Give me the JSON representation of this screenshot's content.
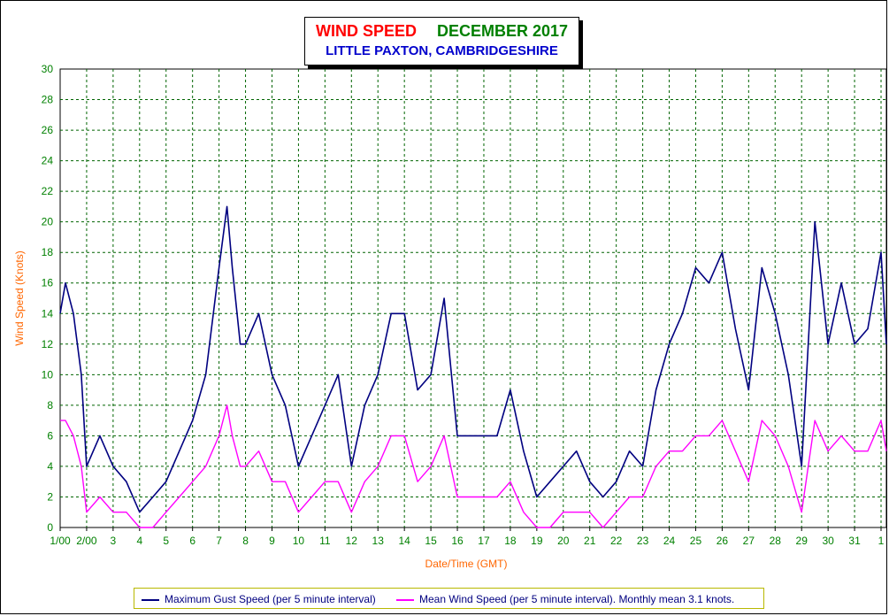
{
  "chart_data": {
    "type": "line",
    "title": "WIND SPEED",
    "title_month": "DECEMBER 2017",
    "subtitle": "LITTLE PAXTON, CAMBRIDGESHIRE",
    "xlabel": "Date/Time (GMT)",
    "ylabel": "Wind Speed (Knots)",
    "ylim": [
      0,
      30
    ],
    "yticks": [
      0,
      2,
      4,
      6,
      8,
      10,
      12,
      14,
      16,
      18,
      20,
      22,
      24,
      26,
      28,
      30
    ],
    "xlim": [
      1,
      32.2
    ],
    "x_tick_labels": [
      "1/00",
      "2/00",
      "3",
      "4",
      "5",
      "6",
      "7",
      "8",
      "9",
      "10",
      "11",
      "12",
      "13",
      "14",
      "15",
      "16",
      "17",
      "18",
      "19",
      "20",
      "21",
      "22",
      "23",
      "24",
      "25",
      "26",
      "27",
      "28",
      "29",
      "30",
      "31",
      "1"
    ],
    "grid": true,
    "legend_position": "bottom",
    "series": [
      {
        "name": "Maximum Gust Speed (per 5 minute interval)",
        "color": "#000080",
        "x": [
          1.0,
          1.2,
          1.5,
          1.8,
          2.0,
          2.5,
          3.0,
          3.5,
          4.0,
          4.5,
          5.0,
          5.5,
          6.0,
          6.5,
          7.0,
          7.3,
          7.5,
          7.8,
          8.0,
          8.5,
          9.0,
          9.5,
          10.0,
          10.5,
          11.0,
          11.5,
          12.0,
          12.5,
          13.0,
          13.5,
          14.0,
          14.5,
          15.0,
          15.5,
          16.0,
          16.5,
          17.0,
          17.5,
          18.0,
          18.5,
          19.0,
          19.5,
          20.0,
          20.5,
          21.0,
          21.5,
          22.0,
          22.5,
          23.0,
          23.5,
          24.0,
          24.5,
          25.0,
          25.5,
          26.0,
          26.5,
          27.0,
          27.5,
          28.0,
          28.5,
          29.0,
          29.5,
          30.0,
          30.5,
          31.0,
          31.5,
          32.0,
          32.2
        ],
        "values": [
          14,
          16,
          14,
          10,
          4,
          6,
          4,
          3,
          1,
          2,
          3,
          5,
          7,
          10,
          17,
          21,
          17,
          12,
          12,
          14,
          10,
          8,
          4,
          6,
          8,
          10,
          4,
          8,
          10,
          14,
          14,
          9,
          10,
          15,
          6,
          6,
          6,
          6,
          9,
          5,
          2,
          3,
          4,
          5,
          3,
          2,
          3,
          5,
          4,
          9,
          12,
          14,
          17,
          16,
          18,
          13,
          9,
          17,
          14,
          10,
          4,
          20,
          12,
          16,
          12,
          13,
          18,
          12
        ]
      },
      {
        "name": "Mean Wind Speed (per 5 minute interval). Monthly mean 3.1 knots.",
        "color": "#ff00ff",
        "x": [
          1.0,
          1.2,
          1.5,
          1.8,
          2.0,
          2.5,
          3.0,
          3.5,
          4.0,
          4.5,
          5.0,
          5.5,
          6.0,
          6.5,
          7.0,
          7.3,
          7.5,
          7.8,
          8.0,
          8.5,
          9.0,
          9.5,
          10.0,
          10.5,
          11.0,
          11.5,
          12.0,
          12.5,
          13.0,
          13.5,
          14.0,
          14.5,
          15.0,
          15.5,
          16.0,
          16.5,
          17.0,
          17.5,
          18.0,
          18.5,
          19.0,
          19.5,
          20.0,
          20.5,
          21.0,
          21.5,
          22.0,
          22.5,
          23.0,
          23.5,
          24.0,
          24.5,
          25.0,
          25.5,
          26.0,
          26.5,
          27.0,
          27.5,
          28.0,
          28.5,
          29.0,
          29.5,
          30.0,
          30.5,
          31.0,
          31.5,
          32.0,
          32.2
        ],
        "values": [
          7,
          7,
          6,
          4,
          1,
          2,
          1,
          1,
          0,
          0,
          1,
          2,
          3,
          4,
          6,
          8,
          6,
          4,
          4,
          5,
          3,
          3,
          1,
          2,
          3,
          3,
          1,
          3,
          4,
          6,
          6,
          3,
          4,
          6,
          2,
          2,
          2,
          2,
          3,
          1,
          0,
          0,
          1,
          1,
          1,
          0,
          1,
          2,
          2,
          4,
          5,
          5,
          6,
          6,
          7,
          5,
          3,
          7,
          6,
          4,
          1,
          7,
          5,
          6,
          5,
          5,
          7,
          5
        ]
      }
    ]
  }
}
